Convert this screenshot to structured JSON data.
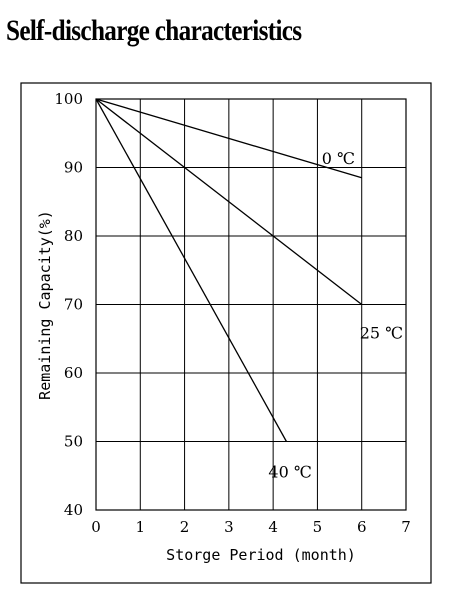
{
  "chart_data": {
    "type": "line",
    "title": "Self-discharge characteristics",
    "xlabel": "Storge Period (month)",
    "ylabel": "Remaining Capacity(%)",
    "xlim": [
      0,
      7
    ],
    "ylim": [
      40,
      100
    ],
    "x_ticks": [
      0,
      1,
      2,
      3,
      4,
      5,
      6,
      7
    ],
    "y_ticks": [
      40,
      50,
      60,
      70,
      80,
      90,
      100
    ],
    "grid": true,
    "legend": "none",
    "series": [
      {
        "name": "0 ℃",
        "x": [
          0,
          6
        ],
        "y": [
          100,
          88.5
        ]
      },
      {
        "name": "25 ℃",
        "x": [
          0,
          6
        ],
        "y": [
          100,
          70
        ]
      },
      {
        "name": "40 ℃",
        "x": [
          0,
          4.3
        ],
        "y": [
          100,
          50
        ]
      }
    ]
  }
}
